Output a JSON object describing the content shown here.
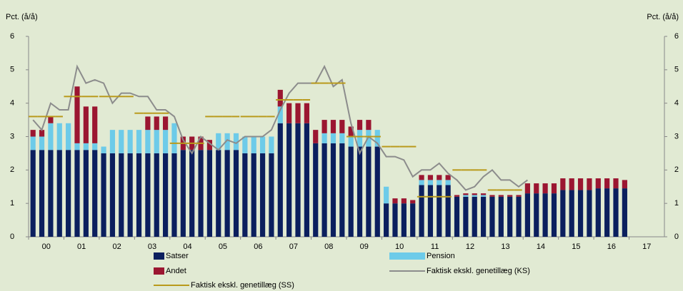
{
  "chart_data": {
    "type": "bar",
    "ylabel": "Pct. (å/å)",
    "y2label": "Pct. (å/å)",
    "categories": [
      "00",
      null,
      null,
      null,
      "01",
      null,
      null,
      null,
      "02",
      null,
      null,
      null,
      "03",
      null,
      null,
      null,
      "04",
      null,
      null,
      null,
      "05",
      null,
      null,
      null,
      "06",
      null,
      null,
      null,
      "07",
      null,
      null,
      null,
      "08",
      null,
      null,
      null,
      "09",
      null,
      null,
      null,
      "10",
      null,
      null,
      null,
      "11",
      null,
      null,
      null,
      "12",
      null,
      null,
      null,
      "13",
      null,
      null,
      null,
      "14",
      null,
      null,
      null,
      "15",
      null,
      null,
      null,
      "16",
      null,
      null,
      null,
      "17",
      null,
      null,
      null
    ],
    "ylim": [
      0,
      6
    ],
    "yticks": [
      0,
      1,
      2,
      3,
      4,
      5,
      6
    ],
    "y2lim": [
      0,
      6
    ],
    "y2ticks": [
      0,
      1,
      2,
      3,
      4,
      5,
      6
    ],
    "grid": false,
    "series": [
      {
        "name": "Satser",
        "type": "bar",
        "color": "#0b1f5e",
        "values": [
          2.6,
          2.6,
          2.6,
          2.6,
          2.6,
          2.6,
          2.6,
          2.6,
          2.5,
          2.5,
          2.5,
          2.5,
          2.5,
          2.5,
          2.5,
          2.5,
          2.5,
          2.6,
          2.6,
          2.6,
          2.6,
          2.6,
          2.6,
          2.6,
          2.5,
          2.5,
          2.5,
          2.5,
          3.4,
          3.4,
          3.4,
          3.4,
          2.8,
          2.8,
          2.8,
          2.8,
          2.7,
          2.7,
          2.7,
          2.7,
          1.0,
          1.0,
          1.0,
          1.0,
          1.55,
          1.55,
          1.55,
          1.55,
          1.2,
          1.2,
          1.2,
          1.2,
          1.2,
          1.2,
          1.2,
          1.2,
          1.3,
          1.3,
          1.3,
          1.3,
          1.4,
          1.4,
          1.4,
          1.4,
          1.45,
          1.45,
          1.45,
          1.45,
          null,
          null,
          null,
          null
        ]
      },
      {
        "name": "Pension",
        "type": "bar",
        "color": "#6dcbe9",
        "values": [
          0.4,
          0.4,
          0.8,
          0.8,
          0.8,
          0.2,
          0.2,
          0.2,
          0.2,
          0.7,
          0.7,
          0.7,
          0.7,
          0.7,
          0.7,
          0.7,
          0.9,
          0,
          0,
          0,
          0,
          0.5,
          0.5,
          0.5,
          0.5,
          0.5,
          0.5,
          0.5,
          0.5,
          0,
          0,
          0,
          0,
          0.3,
          0.3,
          0.3,
          0.3,
          0.5,
          0.5,
          0.5,
          0.5,
          0,
          0,
          0,
          0.15,
          0.15,
          0.15,
          0.15,
          0,
          0.05,
          0.05,
          0.05,
          0,
          0,
          0,
          0,
          0,
          0,
          0,
          0,
          0,
          0,
          0,
          0,
          0,
          0,
          0,
          0,
          null,
          null,
          null,
          null
        ]
      },
      {
        "name": "Andet",
        "type": "bar",
        "color": "#9b1631",
        "values": [
          0.2,
          0.2,
          0.2,
          0,
          0,
          1.7,
          1.1,
          1.1,
          0,
          0,
          0,
          0,
          0,
          0.4,
          0.4,
          0.4,
          0,
          0.4,
          0.4,
          0.4,
          0.3,
          0,
          0,
          0,
          0,
          0,
          0,
          0,
          0.5,
          0.6,
          0.6,
          0.6,
          0.4,
          0.4,
          0.4,
          0.4,
          0.3,
          0.3,
          0.3,
          0,
          0,
          0.15,
          0.15,
          0.1,
          0.15,
          0.15,
          0.15,
          0.15,
          0.05,
          0.05,
          0.05,
          0.05,
          0.05,
          0.05,
          0.05,
          0.05,
          0.3,
          0.3,
          0.3,
          0.3,
          0.35,
          0.35,
          0.35,
          0.35,
          0.3,
          0.3,
          0.3,
          0.25,
          null,
          null,
          null,
          null
        ]
      },
      {
        "name": "Faktisk ekskl. genetillæg (KS)",
        "type": "line",
        "color": "#8c8c8c",
        "values": [
          3.5,
          3.2,
          4.0,
          3.8,
          3.8,
          5.1,
          4.6,
          4.7,
          4.6,
          4.0,
          4.3,
          4.3,
          4.2,
          4.2,
          3.8,
          3.8,
          3.6,
          2.9,
          2.5,
          3.0,
          2.8,
          2.6,
          2.9,
          2.8,
          3.0,
          3.0,
          3.0,
          3.2,
          3.8,
          4.3,
          4.6,
          4.6,
          4.6,
          5.1,
          4.5,
          4.7,
          3.4,
          2.5,
          3.0,
          2.8,
          2.4,
          2.4,
          2.3,
          1.8,
          2.0,
          2.0,
          2.2,
          1.9,
          1.7,
          1.4,
          1.5,
          1.8,
          2.0,
          1.7,
          1.7,
          1.5,
          1.7,
          null,
          null,
          null,
          null,
          null,
          null,
          null,
          null,
          null,
          null,
          null,
          null,
          null,
          null,
          null
        ]
      },
      {
        "name": "Faktisk ekskl. genetillæg (SS)",
        "type": "step",
        "color": "#b99a1b",
        "values": [
          3.6,
          3.6,
          3.6,
          3.6,
          4.2,
          4.2,
          4.2,
          4.2,
          4.2,
          4.2,
          4.2,
          4.2,
          3.7,
          3.7,
          3.7,
          3.7,
          2.8,
          2.8,
          2.8,
          2.8,
          3.6,
          3.6,
          3.6,
          3.6,
          3.6,
          3.6,
          3.6,
          3.6,
          4.1,
          4.1,
          4.1,
          4.1,
          4.6,
          4.6,
          4.6,
          4.6,
          3.0,
          3.0,
          3.0,
          3.0,
          2.7,
          2.7,
          2.7,
          2.7,
          1.2,
          1.2,
          1.2,
          1.2,
          2.0,
          2.0,
          2.0,
          2.0,
          1.4,
          1.4,
          1.4,
          1.4,
          null,
          null,
          null,
          null,
          null,
          null,
          null,
          null,
          null,
          null,
          null,
          null,
          null,
          null,
          null,
          null
        ]
      }
    ]
  }
}
